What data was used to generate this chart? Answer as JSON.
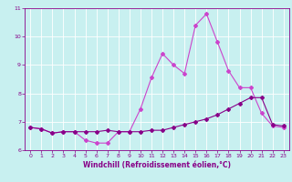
{
  "title": "",
  "xlabel": "Windchill (Refroidissement éolien,°C)",
  "ylabel": "",
  "bg_color": "#c8f0f0",
  "grid_color": "#ffffff",
  "line1_color": "#880088",
  "line2_color": "#cc44cc",
  "line1_x": [
    0,
    1,
    2,
    3,
    4,
    5,
    6,
    7,
    8,
    9,
    10,
    11,
    12,
    13,
    14,
    15,
    16,
    17,
    18,
    19,
    20,
    21,
    22,
    23
  ],
  "line1_y": [
    6.8,
    6.75,
    6.6,
    6.65,
    6.65,
    6.65,
    6.65,
    6.7,
    6.65,
    6.65,
    6.65,
    6.7,
    6.7,
    6.8,
    6.9,
    7.0,
    7.1,
    7.25,
    7.45,
    7.65,
    7.85,
    7.85,
    6.9,
    6.85
  ],
  "line2_x": [
    0,
    1,
    2,
    3,
    4,
    5,
    6,
    7,
    8,
    9,
    10,
    11,
    12,
    13,
    14,
    15,
    16,
    17,
    18,
    19,
    20,
    21,
    22,
    23
  ],
  "line2_y": [
    6.8,
    6.75,
    6.6,
    6.65,
    6.65,
    6.35,
    6.25,
    6.25,
    6.65,
    6.65,
    7.45,
    8.55,
    9.4,
    9.0,
    8.7,
    10.4,
    10.8,
    9.8,
    8.8,
    8.2,
    8.2,
    7.3,
    6.85,
    6.8
  ],
  "xlim": [
    -0.5,
    23.5
  ],
  "ylim": [
    6,
    11
  ],
  "xticks": [
    0,
    1,
    2,
    3,
    4,
    5,
    6,
    7,
    8,
    9,
    10,
    11,
    12,
    13,
    14,
    15,
    16,
    17,
    18,
    19,
    20,
    21,
    22,
    23
  ],
  "yticks": [
    6,
    7,
    8,
    9,
    10,
    11
  ],
  "marker": "D",
  "markersize": 2,
  "linewidth": 0.8,
  "tick_fontsize": 4.5,
  "xlabel_fontsize": 5.5
}
